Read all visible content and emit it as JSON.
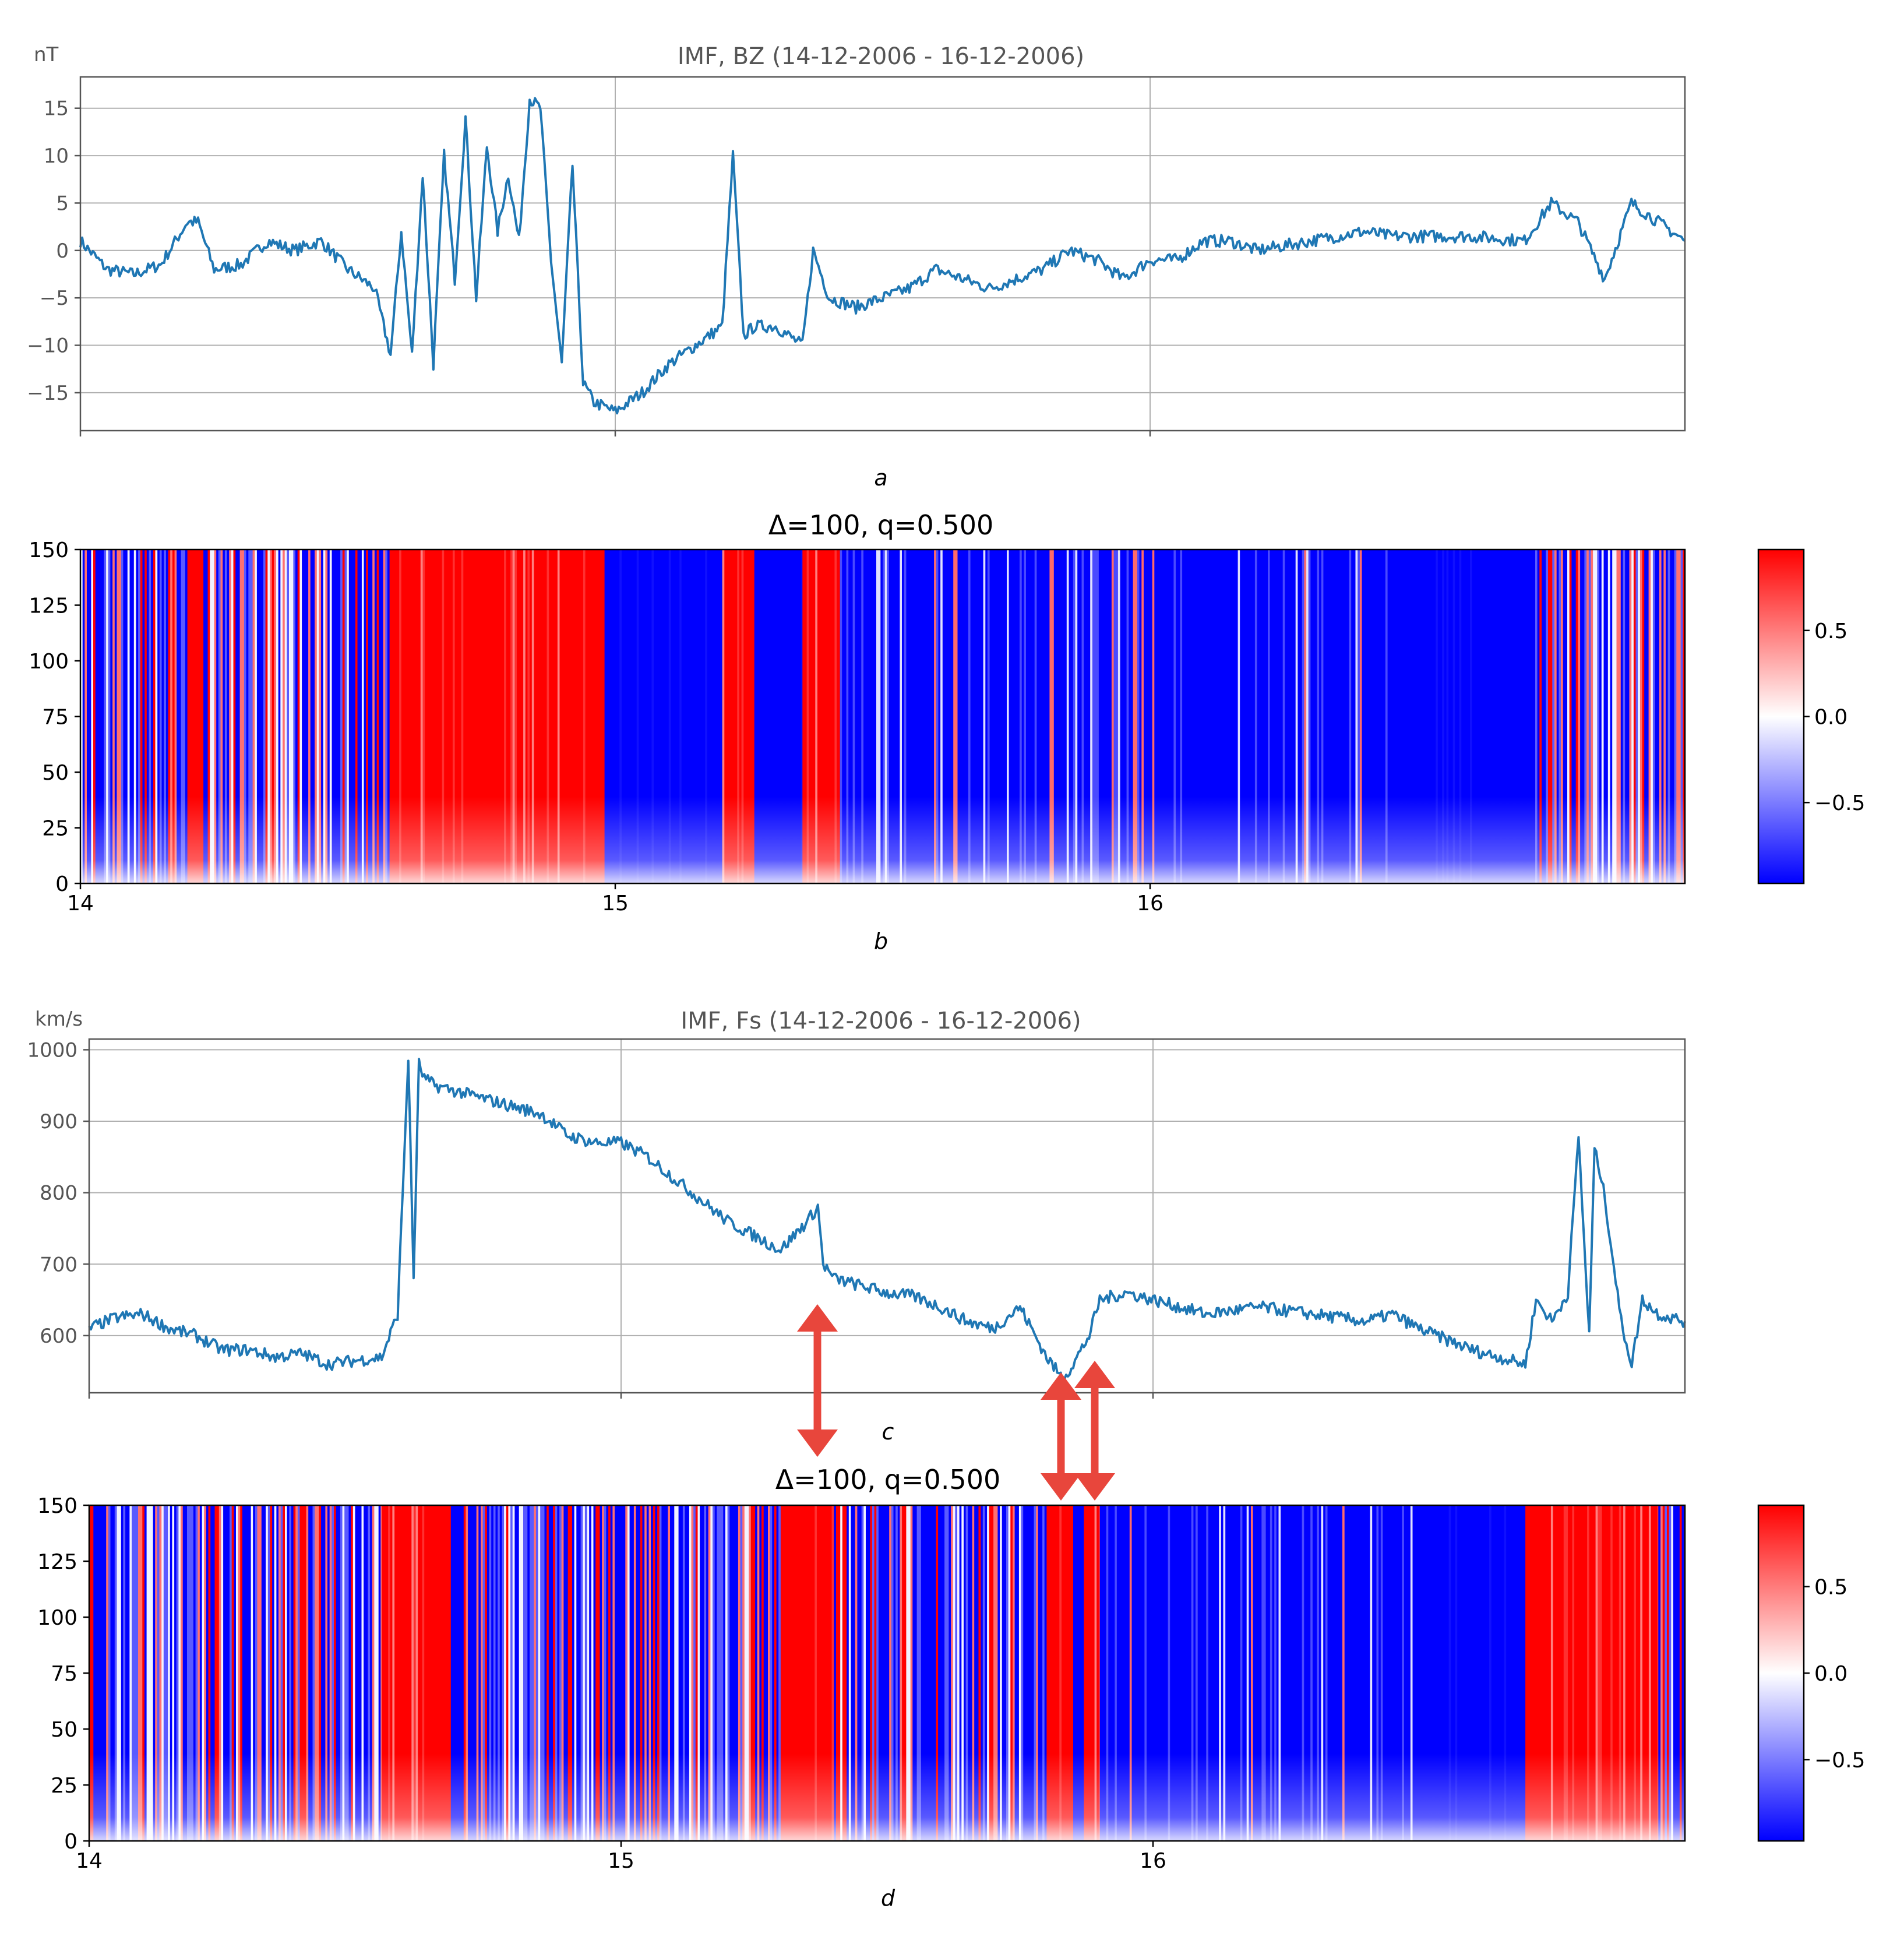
{
  "chart_data": [
    {
      "id": "a",
      "type": "line",
      "title": "IMF, BZ  (14-12-2006 - 16-12-2006)",
      "ylabel": "nT",
      "panel_label": "a",
      "xlim": [
        14.0,
        17.0
      ],
      "ylim": [
        -19,
        18.3
      ],
      "yticks": [
        15,
        10,
        5,
        0,
        -5,
        -10,
        -15
      ],
      "ytick_labels": [
        "15",
        "10",
        "5",
        "0",
        "−5",
        "−10",
        "−15"
      ],
      "xgrid": [
        15,
        16
      ],
      "grid": true,
      "color": "#1f77b4",
      "series": [
        {
          "name": "BZ",
          "x": [
            14.0,
            14.05,
            14.1,
            14.15,
            14.2,
            14.22,
            14.25,
            14.3,
            14.35,
            14.4,
            14.45,
            14.5,
            14.55,
            14.58,
            14.6,
            14.62,
            14.64,
            14.66,
            14.68,
            14.7,
            14.72,
            14.74,
            14.76,
            14.78,
            14.8,
            14.82,
            14.84,
            14.86,
            14.88,
            14.9,
            14.92,
            14.94,
            14.96,
            14.98,
            15.0,
            15.05,
            15.1,
            15.15,
            15.2,
            15.22,
            15.24,
            15.26,
            15.3,
            15.35,
            15.37,
            15.4,
            15.45,
            15.5,
            15.55,
            15.6,
            15.7,
            15.8,
            15.85,
            15.9,
            15.95,
            16.0,
            16.05,
            16.1,
            16.15,
            16.2,
            16.3,
            16.4,
            16.45,
            16.6,
            16.7,
            16.75,
            16.8,
            16.85,
            16.9,
            16.95,
            17.0
          ],
          "values": [
            1,
            -2,
            -2.5,
            -1.5,
            3,
            3,
            -2,
            -1.5,
            1,
            0,
            1,
            -2,
            -4,
            -11,
            2,
            -11,
            8,
            -12,
            10,
            -3,
            14,
            -5,
            11,
            2,
            8,
            1,
            16,
            15,
            -1,
            -12,
            9,
            -14,
            -16,
            -16.5,
            -17,
            -15,
            -12,
            -10,
            -8,
            10,
            -9,
            -8,
            -8,
            -10,
            0,
            -5,
            -6,
            -5,
            -4,
            -2,
            -4,
            -2,
            0,
            -1,
            -3,
            -1,
            -1,
            1,
            1,
            0,
            1,
            2,
            1.5,
            1.5,
            1,
            5,
            3,
            -3,
            5,
            3,
            1
          ]
        }
      ]
    },
    {
      "id": "b",
      "type": "heatmap",
      "title": "Δ=100, q=0.500",
      "panel_label": "b",
      "xlim": [
        14.0,
        17.0
      ],
      "ylim": [
        0,
        150
      ],
      "xticks": [
        14,
        15,
        16
      ],
      "xtick_labels": [
        "14",
        "15",
        "16"
      ],
      "yticks": [
        150,
        125,
        100,
        75,
        50,
        25,
        0
      ],
      "ytick_labels": [
        "150",
        "125",
        "100",
        "75",
        "50",
        "25",
        "0"
      ],
      "colormap": "bwr",
      "colorbar": {
        "range": [
          -0.97,
          0.97
        ],
        "ticks": [
          0.5,
          0.0,
          -0.5
        ],
        "tick_labels": [
          "0.5",
          "0.0",
          "−0.5"
        ]
      },
      "regions": [
        {
          "from": 14.0,
          "to": 14.2,
          "sign": "mixed"
        },
        {
          "from": 14.2,
          "to": 14.23,
          "sign": "positive"
        },
        {
          "from": 14.23,
          "to": 14.58,
          "sign": "mixed"
        },
        {
          "from": 14.58,
          "to": 14.98,
          "sign": "positive"
        },
        {
          "from": 14.98,
          "to": 15.2,
          "sign": "negative"
        },
        {
          "from": 15.2,
          "to": 15.26,
          "sign": "positive"
        },
        {
          "from": 15.26,
          "to": 15.35,
          "sign": "negative"
        },
        {
          "from": 15.35,
          "to": 15.42,
          "sign": "positive"
        },
        {
          "from": 15.42,
          "to": 16.47,
          "sign": "mostly negative"
        },
        {
          "from": 16.47,
          "to": 16.72,
          "sign": "negative"
        },
        {
          "from": 16.72,
          "to": 17.0,
          "sign": "mixed"
        }
      ]
    },
    {
      "id": "c",
      "type": "line",
      "title": "IMF, Fs  (14-12-2006 - 16-12-2006)",
      "ylabel": "km/s",
      "panel_label": "c",
      "xlim": [
        14.0,
        17.0
      ],
      "ylim": [
        520,
        1015
      ],
      "yticks": [
        1000,
        900,
        800,
        700,
        600
      ],
      "ytick_labels": [
        "1000",
        "900",
        "800",
        "700",
        "600"
      ],
      "xgrid": [
        15,
        16
      ],
      "grid": true,
      "color": "#1f77b4",
      "annotations": [
        "double arrow at x≈15.37",
        "double arrow at x≈15.83",
        "double arrow at x≈15.89"
      ],
      "series": [
        {
          "name": "Fs",
          "x": [
            14.0,
            14.05,
            14.1,
            14.15,
            14.2,
            14.25,
            14.3,
            14.35,
            14.4,
            14.45,
            14.5,
            14.55,
            14.58,
            14.6,
            14.61,
            14.62,
            14.63,
            14.64,
            14.65,
            14.7,
            14.75,
            14.8,
            14.85,
            14.9,
            14.95,
            15.0,
            15.05,
            15.1,
            15.15,
            15.2,
            15.25,
            15.3,
            15.35,
            15.37,
            15.38,
            15.4,
            15.45,
            15.5,
            15.55,
            15.6,
            15.65,
            15.7,
            15.75,
            15.8,
            15.83,
            15.85,
            15.88,
            15.9,
            15.95,
            16.0,
            16.1,
            16.2,
            16.3,
            16.4,
            16.45,
            16.5,
            16.6,
            16.7,
            16.72,
            16.75,
            16.78,
            16.8,
            16.82,
            16.83,
            16.84,
            16.85,
            16.88,
            16.9,
            16.92,
            16.95,
            17.0
          ],
          "values": [
            610,
            625,
            630,
            610,
            600,
            580,
            580,
            570,
            575,
            560,
            565,
            570,
            630,
            990,
            680,
            980,
            960,
            955,
            950,
            940,
            930,
            920,
            910,
            880,
            870,
            870,
            850,
            820,
            790,
            760,
            740,
            720,
            760,
            780,
            700,
            680,
            670,
            660,
            655,
            640,
            620,
            610,
            640,
            570,
            540,
            560,
            600,
            650,
            660,
            650,
            630,
            640,
            630,
            620,
            630,
            610,
            580,
            560,
            650,
            620,
            660,
            880,
            600,
            860,
            830,
            790,
            620,
            560,
            650,
            630,
            620
          ]
        }
      ]
    },
    {
      "id": "d",
      "type": "heatmap",
      "title": "Δ=100, q=0.500",
      "panel_label": "d",
      "xlim": [
        14.0,
        17.0
      ],
      "ylim": [
        0,
        150
      ],
      "xticks": [
        14,
        15,
        16
      ],
      "xtick_labels": [
        "14",
        "15",
        "16"
      ],
      "yticks": [
        150,
        125,
        100,
        75,
        50,
        25,
        0
      ],
      "ytick_labels": [
        "150",
        "125",
        "100",
        "75",
        "50",
        "25",
        "0"
      ],
      "colormap": "bwr",
      "colorbar": {
        "range": [
          -0.97,
          0.97
        ],
        "ticks": [
          0.5,
          0.0,
          -0.5
        ],
        "tick_labels": [
          "0.5",
          "0.0",
          "−0.5"
        ]
      },
      "regions": [
        {
          "from": 14.0,
          "to": 14.55,
          "sign": "mixed"
        },
        {
          "from": 14.55,
          "to": 14.68,
          "sign": "positive"
        },
        {
          "from": 14.68,
          "to": 15.3,
          "sign": "mixed"
        },
        {
          "from": 15.3,
          "to": 15.4,
          "sign": "positive"
        },
        {
          "from": 15.4,
          "to": 15.8,
          "sign": "mixed"
        },
        {
          "from": 15.8,
          "to": 15.85,
          "sign": "positive"
        },
        {
          "from": 15.85,
          "to": 15.87,
          "sign": "negative"
        },
        {
          "from": 15.87,
          "to": 15.9,
          "sign": "positive"
        },
        {
          "from": 15.9,
          "to": 16.5,
          "sign": "mostly negative"
        },
        {
          "from": 16.5,
          "to": 16.7,
          "sign": "negative"
        },
        {
          "from": 16.7,
          "to": 16.95,
          "sign": "positive"
        },
        {
          "from": 16.95,
          "to": 17.0,
          "sign": "mixed"
        }
      ]
    }
  ]
}
